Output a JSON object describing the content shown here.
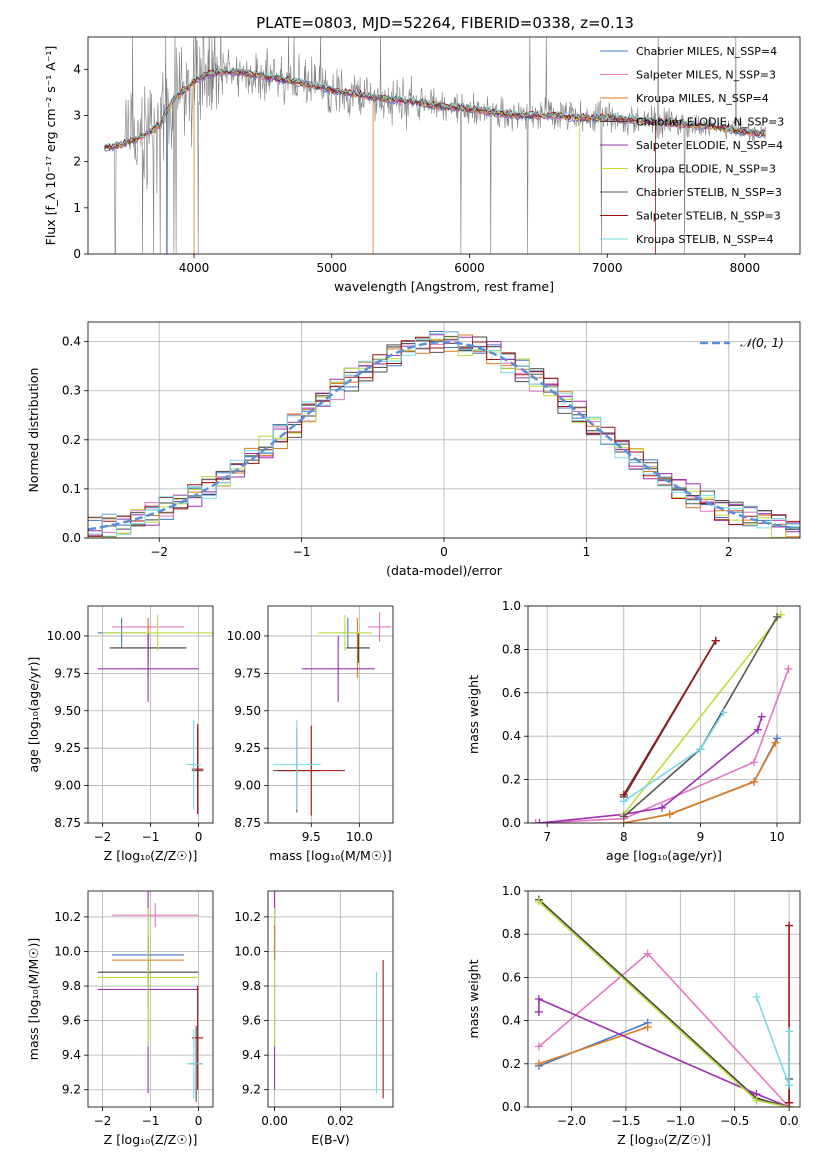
{
  "figure_title": "PLATE=0803, MJD=52264, FIBERID=0338, z=0.13",
  "colors": {
    "chabrier_miles": "#4477cc",
    "salpeter_miles": "#e377c2",
    "kroupa_miles": "#e07a1f",
    "chabrier_elodie": "#444444",
    "salpeter_elodie": "#9b30b0",
    "kroupa_elodie": "#bcdc3c",
    "chabrier_stelib": "#555555",
    "salpeter_stelib": "#a01414",
    "kroupa_stelib": "#77d9e6",
    "data": "#808080",
    "normal": "#5a8fdc"
  },
  "chart_data": [
    {
      "id": "spectrum",
      "type": "line",
      "xlabel": "wavelength [Angstrom, rest frame]",
      "ylabel": "Flux [f_λ 10⁻¹⁷ erg cm⁻² s⁻¹ A⁻¹]",
      "xlim": [
        3230,
        8400
      ],
      "ylim": [
        0,
        4.7
      ],
      "xticks": [
        4000,
        5000,
        6000,
        7000,
        8000
      ],
      "yticks": [
        0,
        1,
        2,
        3,
        4
      ],
      "grid": false,
      "legend_loc": "upper right",
      "legend": [
        "Chabrier MILES, N_SSP=4",
        "Salpeter MILES, N_SSP=3",
        "Kroupa MILES, N_SSP=4",
        "Chabrier ELODIE, N_SSP=3",
        "Salpeter ELODIE, N_SSP=4",
        "Kroupa ELODIE, N_SSP=3",
        "Chabrier STELIB, N_SSP=3",
        "Salpeter STELIB, N_SSP=3",
        "Kroupa STELIB, N_SSP=4"
      ],
      "model_continuum": {
        "x": [
          3350,
          3450,
          3550,
          3650,
          3750,
          3850,
          3950,
          4000,
          4100,
          4200,
          4300,
          4400,
          4600,
          4800,
          5000,
          5200,
          5400,
          5600,
          5800,
          6000,
          6200,
          6400,
          6600,
          6800,
          7000,
          7200,
          7400,
          7600,
          7800,
          8000,
          8150
        ],
        "y": [
          2.3,
          2.35,
          2.45,
          2.6,
          2.8,
          3.35,
          3.6,
          3.75,
          3.9,
          3.95,
          3.95,
          3.9,
          3.8,
          3.7,
          3.55,
          3.45,
          3.35,
          3.3,
          3.2,
          3.15,
          3.05,
          3.0,
          3.0,
          2.95,
          2.95,
          2.9,
          2.85,
          2.8,
          2.75,
          2.65,
          2.6
        ]
      }
    },
    {
      "id": "residuals",
      "type": "bar",
      "xlabel": "(data-model)/error",
      "ylabel": "Normed distribution",
      "xlim": [
        -2.5,
        2.5
      ],
      "ylim": [
        0,
        0.44
      ],
      "xticks": [
        -2,
        -1,
        0,
        1,
        2
      ],
      "yticks": [
        0.0,
        0.1,
        0.2,
        0.3,
        0.4
      ],
      "grid": true,
      "legend_loc": "upper right",
      "legend": [
        "𝒩(0, 1)"
      ],
      "bin_width": 0.1,
      "bin_start": -2.5
    },
    {
      "id": "age_vs_Z",
      "type": "scatter",
      "xlabel": "Z [log₁₀(Z/Z☉)]",
      "ylabel": "age  [log₁₀(age/yr)]",
      "xlim": [
        -2.3,
        0.3
      ],
      "ylim": [
        8.75,
        10.2
      ],
      "xticks": [
        -2,
        -1,
        0
      ],
      "yticks": [
        8.75,
        9.0,
        9.25,
        9.5,
        9.75,
        10.0
      ],
      "grid": true,
      "points": [
        {
          "model": "chabrier_miles",
          "x": -1.6,
          "xerr": 0.5,
          "y": 10.02,
          "yerr": 0.1
        },
        {
          "model": "salpeter_miles",
          "x": -1.05,
          "xerr": 0.75,
          "y": 10.06,
          "yerr": 0.05
        },
        {
          "model": "kroupa_miles",
          "x": -1.05,
          "xerr": 0.75,
          "y": 9.92,
          "yerr": 0.2
        },
        {
          "model": "chabrier_elodie",
          "x": -1.05,
          "xerr": 0.8,
          "y": 9.92,
          "yerr": 0.1
        },
        {
          "model": "salpeter_elodie",
          "x": -1.05,
          "xerr": 1.05,
          "y": 9.78,
          "yerr": 0.22
        },
        {
          "model": "kroupa_elodie",
          "x": -0.85,
          "xerr": 1.15,
          "y": 10.02,
          "yerr": 0.12
        },
        {
          "model": "chabrier_stelib",
          "x": -0.02,
          "xerr": 0.12,
          "y": 9.1,
          "yerr": 0.28
        },
        {
          "model": "salpeter_stelib",
          "x": -0.02,
          "xerr": 0.12,
          "y": 9.11,
          "yerr": 0.3
        },
        {
          "model": "kroupa_stelib",
          "x": -0.1,
          "xerr": 0.15,
          "y": 9.14,
          "yerr": 0.3
        }
      ]
    },
    {
      "id": "age_vs_mass",
      "type": "scatter",
      "xlabel": "mass [log₁₀(M/M☉)]",
      "ylabel": "",
      "xlim": [
        9.05,
        10.35
      ],
      "ylim": [
        8.75,
        10.2
      ],
      "xticks": [
        9.5,
        10.0
      ],
      "yticks": [
        8.75,
        9.0,
        9.25,
        9.5,
        9.75,
        10.0
      ],
      "grid": true,
      "points": [
        {
          "model": "chabrier_miles",
          "x": 9.88,
          "xerr": 0.1,
          "y": 10.02,
          "yerr": 0.1
        },
        {
          "model": "salpeter_miles",
          "x": 10.21,
          "xerr": 0.12,
          "y": 10.06,
          "yerr": 0.1
        },
        {
          "model": "kroupa_miles",
          "x": 9.98,
          "xerr": 0.12,
          "y": 9.92,
          "yerr": 0.2
        },
        {
          "model": "chabrier_elodie",
          "x": 9.99,
          "xerr": 0.12,
          "y": 9.92,
          "yerr": 0.1
        },
        {
          "model": "salpeter_elodie",
          "x": 9.78,
          "xerr": 0.38,
          "y": 9.78,
          "yerr": 0.22
        },
        {
          "model": "kroupa_elodie",
          "x": 9.85,
          "xerr": 0.28,
          "y": 10.02,
          "yerr": 0.12
        },
        {
          "model": "chabrier_stelib",
          "x": 9.35,
          "xerr": 0.25,
          "y": 9.1,
          "yerr": 0.28
        },
        {
          "model": "salpeter_stelib",
          "x": 9.5,
          "xerr": 0.35,
          "y": 9.1,
          "yerr": 0.3
        },
        {
          "model": "kroupa_stelib",
          "x": 9.35,
          "xerr": 0.25,
          "y": 9.14,
          "yerr": 0.3
        }
      ]
    },
    {
      "id": "massweight_vs_age",
      "type": "line",
      "xlabel": "age  [log₁₀(age/yr)]",
      "ylabel": "mass weight",
      "xlim": [
        6.75,
        10.3
      ],
      "ylim": [
        0.0,
        1.0
      ],
      "xticks": [
        7,
        8,
        9,
        10
      ],
      "yticks": [
        0.0,
        0.2,
        0.4,
        0.6,
        0.8,
        1.0
      ],
      "grid": true,
      "series": [
        {
          "model": "chabrier_miles",
          "x": [
            8.0,
            8.6,
            9.7,
            10.0
          ],
          "y": [
            0.0,
            0.04,
            0.19,
            0.39
          ]
        },
        {
          "model": "salpeter_miles",
          "x": [
            6.85,
            8.0,
            9.7,
            10.15
          ],
          "y": [
            0.0,
            0.02,
            0.28,
            0.71
          ]
        },
        {
          "model": "kroupa_miles",
          "x": [
            8.0,
            8.6,
            9.7,
            9.98
          ],
          "y": [
            0.0,
            0.04,
            0.19,
            0.37
          ]
        },
        {
          "model": "chabrier_elodie",
          "x": [
            8.0,
            9.2
          ],
          "y": [
            0.12,
            0.84
          ]
        },
        {
          "model": "salpeter_elodie",
          "x": [
            6.9,
            8.0,
            8.5,
            9.75,
            9.8
          ],
          "y": [
            0.0,
            0.04,
            0.07,
            0.43,
            0.49
          ]
        },
        {
          "model": "kroupa_elodie",
          "x": [
            8.0,
            10.05
          ],
          "y": [
            0.04,
            0.96
          ]
        },
        {
          "model": "chabrier_stelib",
          "x": [
            8.0,
            9.0,
            10.0
          ],
          "y": [
            0.03,
            0.34,
            0.95
          ]
        },
        {
          "model": "salpeter_stelib",
          "x": [
            8.0,
            9.2
          ],
          "y": [
            0.13,
            0.84
          ]
        },
        {
          "model": "kroupa_stelib",
          "x": [
            8.0,
            9.0,
            9.3
          ],
          "y": [
            0.1,
            0.34,
            0.51
          ]
        }
      ]
    },
    {
      "id": "mass_vs_Z",
      "type": "scatter",
      "xlabel": "Z [log₁₀(Z/Z☉)]",
      "ylabel": "mass [log₁₀(M/M☉)]",
      "xlim": [
        -2.3,
        0.3
      ],
      "ylim": [
        9.1,
        10.35
      ],
      "xticks": [
        -2,
        -1,
        0
      ],
      "yticks": [
        9.2,
        9.4,
        9.6,
        9.8,
        10.0,
        10.2
      ],
      "grid": true,
      "points": [
        {
          "model": "chabrier_miles",
          "x": -1.05,
          "xerr": 0.75,
          "y": 9.98,
          "yerr": 0.1
        },
        {
          "model": "salpeter_miles",
          "x": -0.9,
          "xerr": 0.9,
          "y": 10.21,
          "yerr": 0.07
        },
        {
          "model": "kroupa_miles",
          "x": -1.05,
          "xerr": 0.75,
          "y": 9.95,
          "yerr": 0.12
        },
        {
          "model": "chabrier_elodie",
          "x": -1.05,
          "xerr": 1.05,
          "y": 9.88,
          "yerr": 0.22
        },
        {
          "model": "salpeter_elodie",
          "x": -1.05,
          "xerr": 1.05,
          "y": 9.78,
          "yerr": 0.6
        },
        {
          "model": "kroupa_elodie",
          "x": -1.05,
          "xerr": 1.05,
          "y": 9.85,
          "yerr": 0.4
        },
        {
          "model": "chabrier_stelib",
          "x": -0.05,
          "xerr": 0.12,
          "y": 9.35,
          "yerr": 0.22
        },
        {
          "model": "salpeter_stelib",
          "x": -0.02,
          "xerr": 0.12,
          "y": 9.5,
          "yerr": 0.3
        },
        {
          "model": "kroupa_stelib",
          "x": -0.1,
          "xerr": 0.15,
          "y": 9.35,
          "yerr": 0.2
        }
      ]
    },
    {
      "id": "mass_vs_ebv",
      "type": "scatter",
      "xlabel": "E(B-V)",
      "ylabel": "",
      "xlim": [
        -0.002,
        0.036
      ],
      "ylim": [
        9.1,
        10.35
      ],
      "xticks": [
        0.0,
        0.02
      ],
      "yticks": [
        9.2,
        9.4,
        9.6,
        9.8,
        10.0,
        10.2
      ],
      "grid": true,
      "points": [
        {
          "model": "salpeter_miles",
          "x": 0.0,
          "y": 10.21,
          "yerr": 0.1
        },
        {
          "model": "salpeter_elodie",
          "x": 0.0,
          "y": 9.78,
          "yerr": 0.58
        },
        {
          "model": "kroupa_elodie",
          "x": 0.0,
          "y": 9.85,
          "yerr": 0.4
        },
        {
          "model": "kroupa_miles",
          "x": 0.0,
          "y": 10.05,
          "yerr": 0.1
        },
        {
          "model": "kroupa_stelib",
          "x": 0.031,
          "y": 9.53,
          "yerr": 0.35
        },
        {
          "model": "salpeter_stelib",
          "x": 0.033,
          "y": 9.55,
          "yerr": 0.4
        }
      ]
    },
    {
      "id": "massweight_vs_Z",
      "type": "line",
      "xlabel": "Z [log₁₀(Z/Z☉)]",
      "ylabel": "mass weight",
      "xlim": [
        -2.4,
        0.1
      ],
      "ylim": [
        0.0,
        1.0
      ],
      "xticks": [
        -2.0,
        -1.5,
        -1.0,
        -0.5,
        0.0
      ],
      "yticks": [
        0.0,
        0.2,
        0.4,
        0.6,
        0.8,
        1.0
      ],
      "grid": true,
      "series": [
        {
          "model": "chabrier_miles",
          "x": [
            -2.3,
            -1.3
          ],
          "y": [
            0.19,
            0.39
          ]
        },
        {
          "model": "salpeter_miles",
          "x": [
            -2.3,
            -1.3,
            0.0
          ],
          "y": [
            0.28,
            0.71,
            0.0
          ]
        },
        {
          "model": "kroupa_miles",
          "x": [
            -2.3,
            -1.3
          ],
          "y": [
            0.2,
            0.37
          ]
        },
        {
          "model": "chabrier_elodie",
          "x": [
            -2.3,
            -0.3,
            0.0
          ],
          "y": [
            0.96,
            0.04,
            0.0
          ]
        },
        {
          "model": "salpeter_elodie",
          "x": [
            -2.3,
            -2.3,
            -0.3,
            0.0
          ],
          "y": [
            0.44,
            0.5,
            0.06,
            0.0
          ]
        },
        {
          "model": "kroupa_elodie",
          "x": [
            -2.3,
            -0.3,
            0.0
          ],
          "y": [
            0.95,
            0.03,
            0.0
          ]
        },
        {
          "model": "chabrier_stelib",
          "x": [
            0.0,
            0.0
          ],
          "y": [
            0.13,
            0.02
          ]
        },
        {
          "model": "salpeter_stelib",
          "x": [
            0.0,
            0.0
          ],
          "y": [
            0.84,
            0.02
          ]
        },
        {
          "model": "kroupa_stelib",
          "x": [
            -0.3,
            0.0,
            0.0
          ],
          "y": [
            0.51,
            0.1,
            0.35
          ]
        }
      ]
    }
  ]
}
